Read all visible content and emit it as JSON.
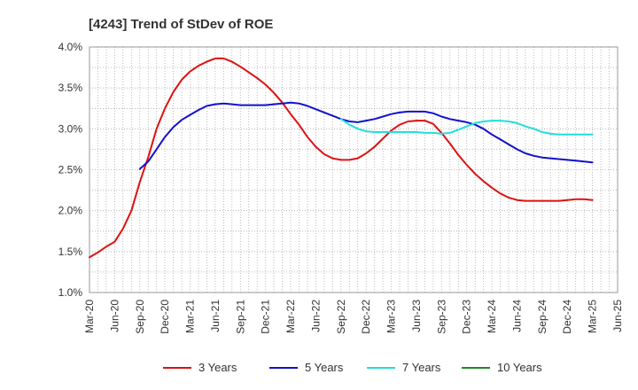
{
  "chart_data": {
    "type": "line",
    "title": "[4243]  Trend of StDev of ROE",
    "xlabel": "",
    "ylabel": "",
    "ylim": [
      1.0,
      4.0
    ],
    "y_ticks": [
      "1.0%",
      "1.5%",
      "2.0%",
      "2.5%",
      "3.0%",
      "3.5%",
      "4.0%"
    ],
    "x_ticks": [
      "Mar-20",
      "Jun-20",
      "Sep-20",
      "Dec-20",
      "Mar-21",
      "Jun-21",
      "Sep-21",
      "Dec-21",
      "Mar-22",
      "Jun-22",
      "Sep-22",
      "Dec-22",
      "Mar-23",
      "Jun-23",
      "Sep-23",
      "Dec-23",
      "Mar-24",
      "Jun-24",
      "Sep-24",
      "Dec-24",
      "Mar-25",
      "Jun-25"
    ],
    "x_range": [
      "Mar-20",
      "Jun-25"
    ],
    "grid": true,
    "legend_position": "bottom",
    "series": [
      {
        "name": "3 Years",
        "color": "#dd1111",
        "x": [
          "Mar-20",
          "Apr-20",
          "May-20",
          "Jun-20",
          "Jul-20",
          "Aug-20",
          "Sep-20",
          "Oct-20",
          "Nov-20",
          "Dec-20",
          "Jan-21",
          "Feb-21",
          "Mar-21",
          "Apr-21",
          "May-21",
          "Jun-21",
          "Jul-21",
          "Aug-21",
          "Sep-21",
          "Oct-21",
          "Nov-21",
          "Dec-21",
          "Jan-22",
          "Feb-22",
          "Mar-22",
          "Apr-22",
          "May-22",
          "Jun-22",
          "Jul-22",
          "Aug-22",
          "Sep-22",
          "Oct-22",
          "Nov-22",
          "Dec-22",
          "Jan-23",
          "Feb-23",
          "Mar-23",
          "Apr-23",
          "May-23",
          "Jun-23",
          "Jul-23",
          "Aug-23",
          "Sep-23",
          "Oct-23",
          "Nov-23",
          "Dec-23",
          "Jan-24",
          "Feb-24",
          "Mar-24",
          "Apr-24",
          "May-24",
          "Jun-24",
          "Jul-24",
          "Aug-24",
          "Sep-24",
          "Oct-24",
          "Nov-24",
          "Dec-24",
          "Jan-25",
          "Feb-25",
          "Mar-25"
        ],
        "values": [
          1.43,
          1.49,
          1.56,
          1.62,
          1.78,
          2.0,
          2.35,
          2.65,
          3.0,
          3.25,
          3.45,
          3.6,
          3.7,
          3.77,
          3.82,
          3.86,
          3.86,
          3.82,
          3.76,
          3.69,
          3.62,
          3.54,
          3.44,
          3.32,
          3.18,
          3.05,
          2.9,
          2.78,
          2.69,
          2.64,
          2.62,
          2.62,
          2.64,
          2.7,
          2.78,
          2.88,
          2.98,
          3.05,
          3.09,
          3.1,
          3.1,
          3.06,
          2.95,
          2.82,
          2.68,
          2.56,
          2.45,
          2.36,
          2.28,
          2.21,
          2.16,
          2.13,
          2.12,
          2.12,
          2.12,
          2.12,
          2.12,
          2.13,
          2.14,
          2.14,
          2.13
        ]
      },
      {
        "name": "5 Years",
        "color": "#1111cc",
        "x": [
          "Sep-20",
          "Oct-20",
          "Nov-20",
          "Dec-20",
          "Jan-21",
          "Feb-21",
          "Mar-21",
          "Apr-21",
          "May-21",
          "Jun-21",
          "Jul-21",
          "Aug-21",
          "Sep-21",
          "Oct-21",
          "Nov-21",
          "Dec-21",
          "Jan-22",
          "Feb-22",
          "Mar-22",
          "Apr-22",
          "May-22",
          "Jun-22",
          "Jul-22",
          "Aug-22",
          "Sep-22",
          "Oct-22",
          "Nov-22",
          "Dec-22",
          "Jan-23",
          "Feb-23",
          "Mar-23",
          "Apr-23",
          "May-23",
          "Jun-23",
          "Jul-23",
          "Aug-23",
          "Sep-23",
          "Oct-23",
          "Nov-23",
          "Dec-23",
          "Jan-24",
          "Feb-24",
          "Mar-24",
          "Apr-24",
          "May-24",
          "Jun-24",
          "Jul-24",
          "Aug-24",
          "Sep-24",
          "Oct-24",
          "Nov-24",
          "Dec-24",
          "Jan-25",
          "Feb-25",
          "Mar-25"
        ],
        "values": [
          2.51,
          2.6,
          2.75,
          2.9,
          3.02,
          3.11,
          3.17,
          3.23,
          3.28,
          3.3,
          3.31,
          3.3,
          3.29,
          3.29,
          3.29,
          3.29,
          3.3,
          3.31,
          3.32,
          3.31,
          3.28,
          3.24,
          3.2,
          3.16,
          3.12,
          3.09,
          3.08,
          3.1,
          3.12,
          3.15,
          3.18,
          3.2,
          3.21,
          3.21,
          3.21,
          3.19,
          3.15,
          3.12,
          3.1,
          3.08,
          3.05,
          3.0,
          2.93,
          2.87,
          2.81,
          2.75,
          2.7,
          2.67,
          2.65,
          2.64,
          2.63,
          2.62,
          2.61,
          2.6,
          2.59
        ]
      },
      {
        "name": "7 Years",
        "color": "#22dddd",
        "x": [
          "Sep-22",
          "Oct-22",
          "Nov-22",
          "Dec-22",
          "Jan-23",
          "Feb-23",
          "Mar-23",
          "Apr-23",
          "May-23",
          "Jun-23",
          "Jul-23",
          "Aug-23",
          "Sep-23",
          "Oct-23",
          "Nov-23",
          "Dec-23",
          "Jan-24",
          "Feb-24",
          "Mar-24",
          "Apr-24",
          "May-24",
          "Jun-24",
          "Jul-24",
          "Aug-24",
          "Sep-24",
          "Oct-24",
          "Nov-24",
          "Dec-24",
          "Jan-25",
          "Feb-25",
          "Mar-25"
        ],
        "values": [
          3.12,
          3.05,
          3.0,
          2.97,
          2.96,
          2.96,
          2.96,
          2.96,
          2.96,
          2.96,
          2.95,
          2.95,
          2.94,
          2.95,
          2.99,
          3.03,
          3.07,
          3.09,
          3.1,
          3.1,
          3.09,
          3.07,
          3.03,
          3.0,
          2.96,
          2.94,
          2.93,
          2.93,
          2.93,
          2.93,
          2.93
        ]
      },
      {
        "name": "10 Years",
        "color": "#228822",
        "x": [],
        "values": []
      }
    ]
  }
}
